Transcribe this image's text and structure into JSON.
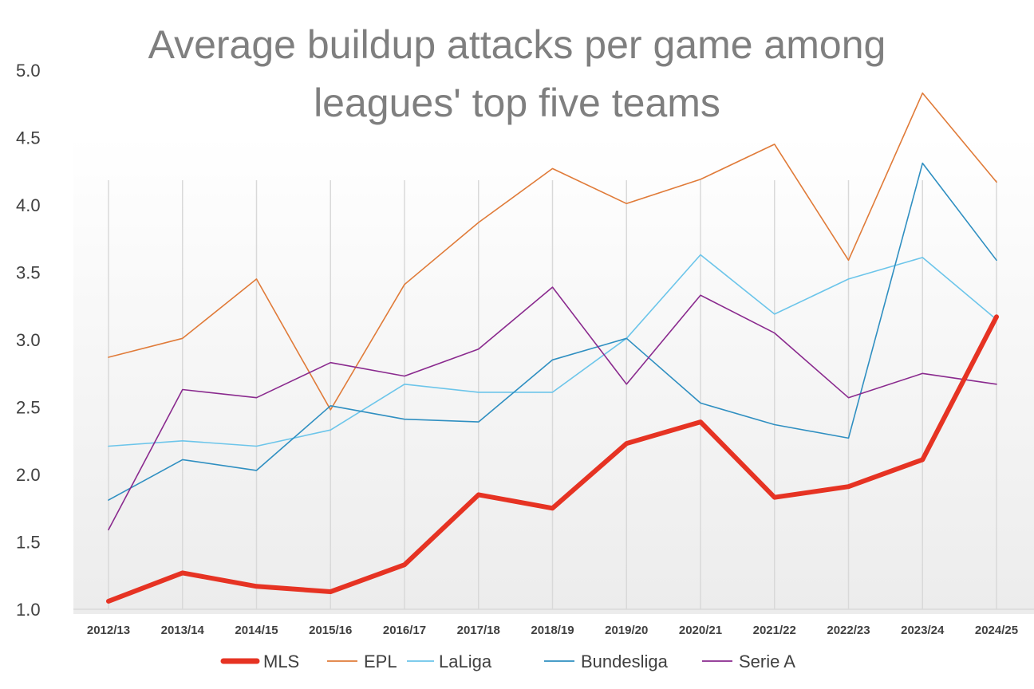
{
  "chart_data": {
    "type": "line",
    "title_lines": [
      "Average buildup attacks per game among",
      "leagues' top five teams"
    ],
    "xlabel": "",
    "ylabel": "",
    "categories": [
      "2012/13",
      "2013/14",
      "2014/15",
      "2015/16",
      "2016/17",
      "2017/18",
      "2018/19",
      "2019/20",
      "2020/21",
      "2021/22",
      "2022/23",
      "2023/24",
      "2024/25"
    ],
    "ylim": [
      1.0,
      5.0
    ],
    "yticks": [
      "1.0",
      "1.5",
      "2.0",
      "2.5",
      "3.0",
      "3.5",
      "4.0",
      "4.5",
      "5.0"
    ],
    "grid": "vertical",
    "legend_position": "bottom",
    "series": [
      {
        "name": "EPL",
        "color": "#e07b39",
        "values": [
          2.87,
          3.01,
          3.45,
          2.48,
          3.41,
          3.87,
          4.27,
          4.01,
          4.19,
          4.45,
          3.59,
          4.83,
          4.17
        ]
      },
      {
        "name": "LaLiga",
        "color": "#6cc5ea",
        "values": [
          2.21,
          2.25,
          2.21,
          2.33,
          2.67,
          2.61,
          2.61,
          3.01,
          3.63,
          3.19,
          3.45,
          3.61,
          3.15
        ]
      },
      {
        "name": "Bundesliga",
        "color": "#2f8fc1",
        "values": [
          1.81,
          2.11,
          2.03,
          2.51,
          2.41,
          2.39,
          2.85,
          3.01,
          2.53,
          2.37,
          2.27,
          4.31,
          3.59
        ]
      },
      {
        "name": "Serie A",
        "color": "#8a2a8e",
        "values": [
          1.59,
          2.63,
          2.57,
          2.83,
          2.73,
          2.93,
          3.39,
          2.67,
          3.33,
          3.05,
          2.57,
          2.75,
          2.67
        ]
      },
      {
        "name": "MLS",
        "color": "#e63323",
        "values": [
          1.06,
          1.27,
          1.17,
          1.13,
          1.33,
          1.85,
          1.75,
          2.23,
          2.39,
          1.83,
          1.91,
          2.11,
          3.17
        ]
      }
    ],
    "legend_order": [
      "MLS",
      "EPL",
      "LaLiga",
      "Bundesliga",
      "Serie A"
    ]
  }
}
